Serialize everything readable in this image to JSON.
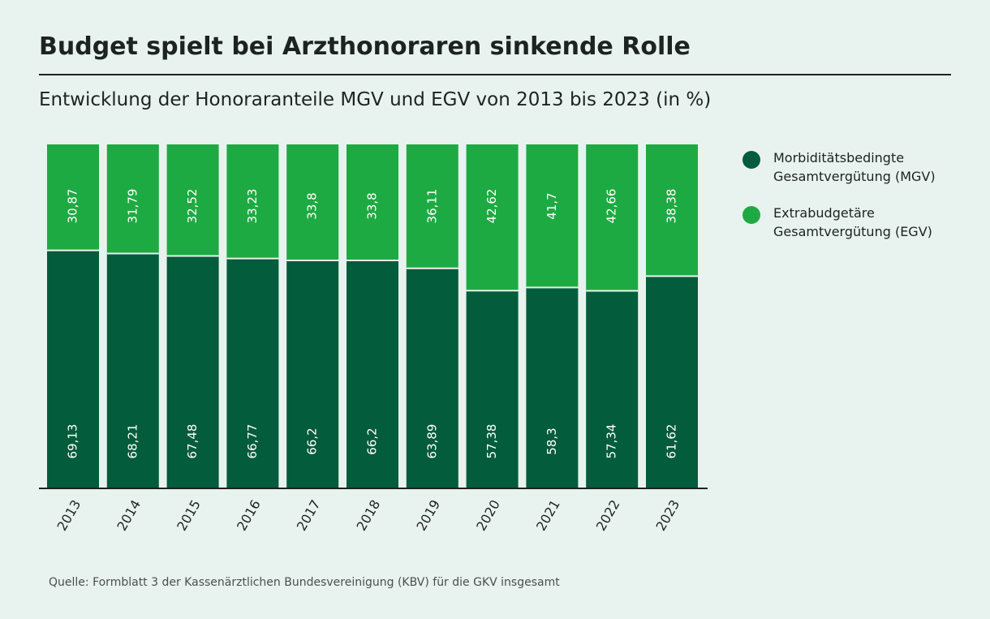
{
  "title": "Budget spielt bei Arzthonoraren sinkende Rolle",
  "subtitle": "Entwicklung der Honoraranteile MGV und EGV von 2013 bis 2023 (in %)",
  "source": "Quelle: Formblatt 3 der Kassenärztlichen Bundesvereinigung (KBV) für die GKV insgesamt",
  "legend": [
    {
      "label": "Morbiditätsbedingte Gesamtvergütung (MGV)",
      "color": "#035c3b"
    },
    {
      "label": "Extrabudgetäre Gesamtvergütung (EGV)",
      "color": "#1eaa42"
    }
  ],
  "chart_data": {
    "type": "bar",
    "stacked": true,
    "categories": [
      "2013",
      "2014",
      "2015",
      "2016",
      "2017",
      "2018",
      "2019",
      "2020",
      "2021",
      "2022",
      "2023"
    ],
    "series": [
      {
        "name": "Morbiditätsbedingte Gesamtvergütung (MGV)",
        "color": "#035c3b",
        "values": [
          69.13,
          68.21,
          67.48,
          66.77,
          66.2,
          66.2,
          63.89,
          57.38,
          58.3,
          57.34,
          61.62
        ],
        "labels": [
          "69,13",
          "68,21",
          "67,48",
          "66,77",
          "66,2",
          "66,2",
          "63,89",
          "57,38",
          "58,3",
          "57,34",
          "61,62"
        ]
      },
      {
        "name": "Extrabudgetäre Gesamtvergütung (EGV)",
        "color": "#1eaa42",
        "values": [
          30.87,
          31.79,
          32.52,
          33.23,
          33.8,
          33.8,
          36.11,
          42.62,
          41.7,
          42.66,
          38.38
        ],
        "labels": [
          "30,87",
          "31,79",
          "32,52",
          "33,23",
          "33,8",
          "33,8",
          "36,11",
          "42,62",
          "41,7",
          "42,66",
          "38,38"
        ]
      }
    ],
    "ylim": [
      0,
      100
    ],
    "grid": false,
    "legend_position": "right"
  }
}
